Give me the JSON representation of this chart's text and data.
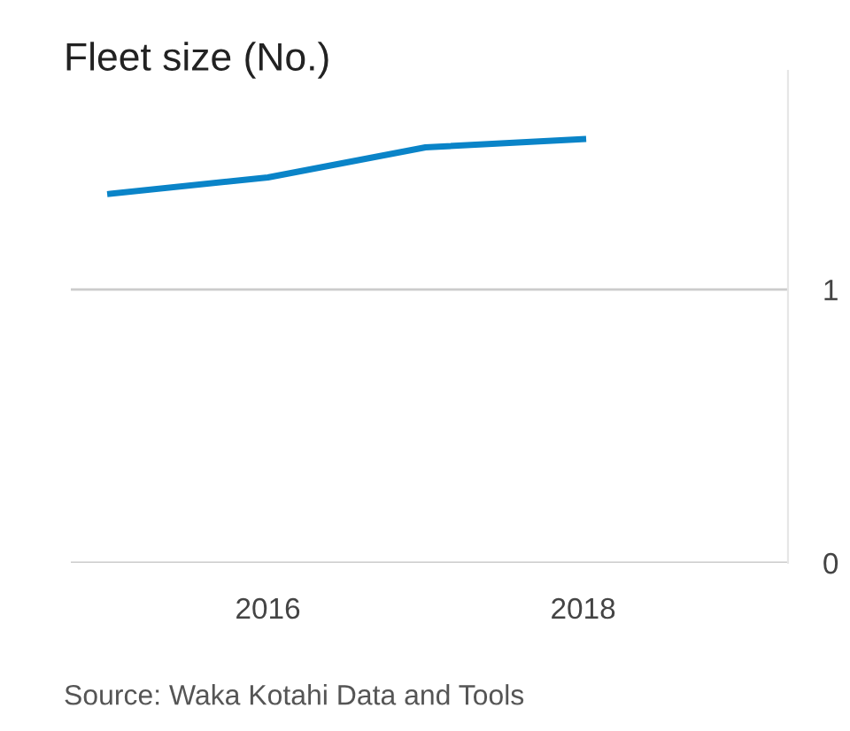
{
  "chart_data": {
    "type": "line",
    "title": "Fleet size (No.)",
    "x": [
      2015,
      2016,
      2017,
      2018
    ],
    "series": [
      {
        "color": "#0a84c8",
        "values": [
          1.35,
          1.41,
          1.52,
          1.55
        ]
      }
    ],
    "xlim": [
      2014.75,
      2019.3
    ],
    "xticks": [
      2016,
      2018
    ],
    "ylim": [
      0,
      1.8
    ],
    "yticks": [
      0,
      1
    ],
    "grid": "y",
    "marker": "none",
    "line_style": "solid",
    "legend": false,
    "annotations": [
      "Source: Waka Kotahi Data and Tools"
    ]
  }
}
